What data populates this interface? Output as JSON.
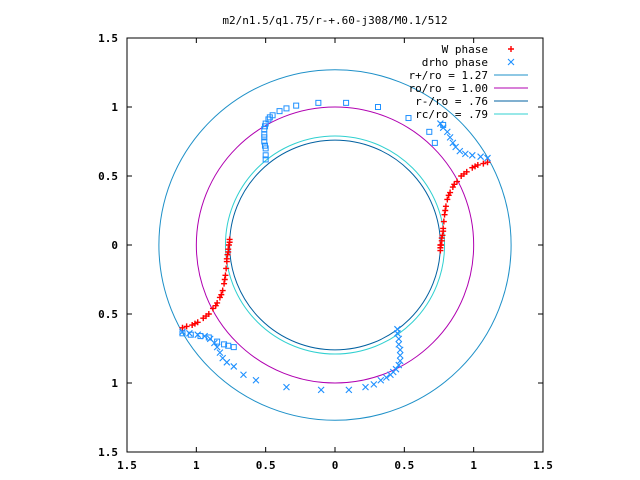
{
  "chart_data": {
    "type": "scatter",
    "title": "m2/n1.5/q1.75/r-+.60-j308/M0.1/512",
    "xlabel": "",
    "ylabel": "",
    "xlim": [
      -1.5,
      1.5
    ],
    "ylim": [
      -1.5,
      1.5
    ],
    "x_ticks": [
      -1.5,
      -1,
      -0.5,
      0,
      0.5,
      1,
      1.5
    ],
    "y_ticks": [
      -1.5,
      -1,
      -0.5,
      0,
      0.5,
      1,
      1.5
    ],
    "x_tick_labels": [
      "1.5",
      "1",
      "0.5",
      "0",
      "0.5",
      "1",
      "1.5"
    ],
    "y_tick_labels": [
      "1.5",
      "1",
      "0.5",
      "0",
      "0.5",
      "1",
      "1.5"
    ],
    "grid": false,
    "legend_position": "top-right",
    "colors": {
      "w_phase": "#ff0000",
      "drho_phase": "#1e90ff",
      "r_plus": "#1e90c8",
      "r_zero": "#b000b0",
      "r_minus": "#0060a0",
      "r_c": "#30d0d0"
    },
    "series": [
      {
        "name": "W phase",
        "marker": "+",
        "points": [
          [
            0.76,
            -0.04
          ],
          [
            0.76,
            -0.02
          ],
          [
            0.765,
            0.0
          ],
          [
            0.77,
            0.03
          ],
          [
            0.775,
            0.07
          ],
          [
            0.78,
            0.12
          ],
          [
            0.785,
            0.17
          ],
          [
            0.79,
            0.22
          ],
          [
            0.8,
            0.28
          ],
          [
            0.81,
            0.33
          ],
          [
            0.83,
            0.38
          ],
          [
            0.85,
            0.42
          ],
          [
            0.88,
            0.46
          ],
          [
            0.91,
            0.5
          ],
          [
            0.95,
            0.53
          ],
          [
            0.99,
            0.56
          ],
          [
            1.03,
            0.58
          ],
          [
            1.07,
            0.59
          ],
          [
            1.1,
            0.6
          ],
          [
            0.76,
            0.0
          ],
          [
            0.77,
            0.05
          ],
          [
            0.78,
            0.1
          ],
          [
            0.795,
            0.25
          ],
          [
            0.82,
            0.36
          ],
          [
            0.86,
            0.44
          ],
          [
            0.93,
            0.515
          ],
          [
            1.01,
            0.57
          ],
          [
            -0.76,
            0.04
          ],
          [
            -0.76,
            0.02
          ],
          [
            -0.765,
            0.0
          ],
          [
            -0.77,
            -0.03
          ],
          [
            -0.775,
            -0.07
          ],
          [
            -0.78,
            -0.12
          ],
          [
            -0.785,
            -0.17
          ],
          [
            -0.79,
            -0.22
          ],
          [
            -0.8,
            -0.28
          ],
          [
            -0.81,
            -0.33
          ],
          [
            -0.83,
            -0.38
          ],
          [
            -0.85,
            -0.42
          ],
          [
            -0.88,
            -0.46
          ],
          [
            -0.91,
            -0.5
          ],
          [
            -0.95,
            -0.53
          ],
          [
            -0.99,
            -0.56
          ],
          [
            -1.03,
            -0.58
          ],
          [
            -1.07,
            -0.59
          ],
          [
            -1.1,
            -0.6
          ],
          [
            -0.77,
            -0.05
          ],
          [
            -0.78,
            -0.1
          ],
          [
            -0.795,
            -0.25
          ],
          [
            -0.82,
            -0.36
          ],
          [
            -0.86,
            -0.44
          ],
          [
            -0.93,
            -0.515
          ],
          [
            -1.01,
            -0.57
          ]
        ]
      },
      {
        "name": "drho phase",
        "marker": "x",
        "points": [
          [
            1.1,
            0.63
          ],
          [
            1.05,
            0.64
          ],
          [
            0.99,
            0.65
          ],
          [
            0.94,
            0.66
          ],
          [
            0.9,
            0.68
          ],
          [
            0.87,
            0.71
          ],
          [
            0.85,
            0.74
          ],
          [
            0.83,
            0.78
          ],
          [
            0.81,
            0.82
          ],
          [
            0.78,
            0.85
          ],
          [
            0.76,
            0.88
          ],
          [
            -1.1,
            -0.63
          ],
          [
            -1.05,
            -0.64
          ],
          [
            -0.99,
            -0.65
          ],
          [
            -0.94,
            -0.66
          ],
          [
            -0.9,
            -0.68
          ],
          [
            -0.87,
            -0.71
          ],
          [
            -0.85,
            -0.74
          ],
          [
            -0.83,
            -0.78
          ],
          [
            -0.81,
            -0.82
          ],
          [
            -0.78,
            -0.85
          ],
          [
            -0.73,
            -0.88
          ],
          [
            -0.66,
            -0.94
          ],
          [
            -0.57,
            -0.98
          ],
          [
            -0.35,
            -1.03
          ],
          [
            -0.1,
            -1.05
          ],
          [
            0.1,
            -1.05
          ],
          [
            0.22,
            -1.03
          ],
          [
            0.28,
            -1.01
          ],
          [
            0.33,
            -0.98
          ],
          [
            0.37,
            -0.96
          ],
          [
            0.4,
            -0.94
          ],
          [
            0.42,
            -0.92
          ],
          [
            0.44,
            -0.9
          ],
          [
            0.46,
            -0.87
          ],
          [
            0.47,
            -0.84
          ],
          [
            0.47,
            -0.8
          ],
          [
            0.47,
            -0.76
          ],
          [
            0.46,
            -0.72
          ],
          [
            0.46,
            -0.68
          ],
          [
            0.45,
            -0.64
          ],
          [
            0.45,
            -0.61
          ]
        ]
      },
      {
        "name": "",
        "marker": "square",
        "points": [
          [
            -0.5,
            0.65
          ],
          [
            -0.5,
            0.7
          ],
          [
            -0.51,
            0.75
          ],
          [
            -0.51,
            0.8
          ],
          [
            -0.51,
            0.84
          ],
          [
            -0.5,
            0.88
          ],
          [
            -0.48,
            0.91
          ],
          [
            -0.45,
            0.94
          ],
          [
            -0.4,
            0.97
          ],
          [
            -0.35,
            0.99
          ],
          [
            -0.28,
            1.01
          ],
          [
            -0.12,
            1.03
          ],
          [
            0.08,
            1.03
          ],
          [
            0.31,
            1.0
          ],
          [
            0.53,
            0.92
          ],
          [
            0.68,
            0.82
          ],
          [
            0.72,
            0.74
          ],
          [
            0.78,
            0.87
          ],
          [
            -0.5,
            0.62
          ],
          [
            -0.505,
            0.72
          ],
          [
            -0.51,
            0.78
          ],
          [
            -0.505,
            0.86
          ],
          [
            -0.47,
            0.925
          ],
          [
            -1.1,
            -0.64
          ],
          [
            -1.04,
            -0.65
          ],
          [
            -0.97,
            -0.66
          ],
          [
            -0.91,
            -0.67
          ],
          [
            -0.85,
            -0.7
          ],
          [
            -0.8,
            -0.72
          ],
          [
            -0.77,
            -0.73
          ],
          [
            -0.73,
            -0.74
          ]
        ]
      }
    ],
    "circles": [
      {
        "name": "r+/ro = 1.27",
        "r": 1.27,
        "color_key": "r_plus"
      },
      {
        "name": "ro/ro = 1.00",
        "r": 1.0,
        "color_key": "r_zero"
      },
      {
        "name": "r-/ro = .76",
        "r": 0.76,
        "color_key": "r_minus"
      },
      {
        "name": "rc/ro = .79",
        "r": 0.79,
        "color_key": "r_c"
      }
    ]
  }
}
